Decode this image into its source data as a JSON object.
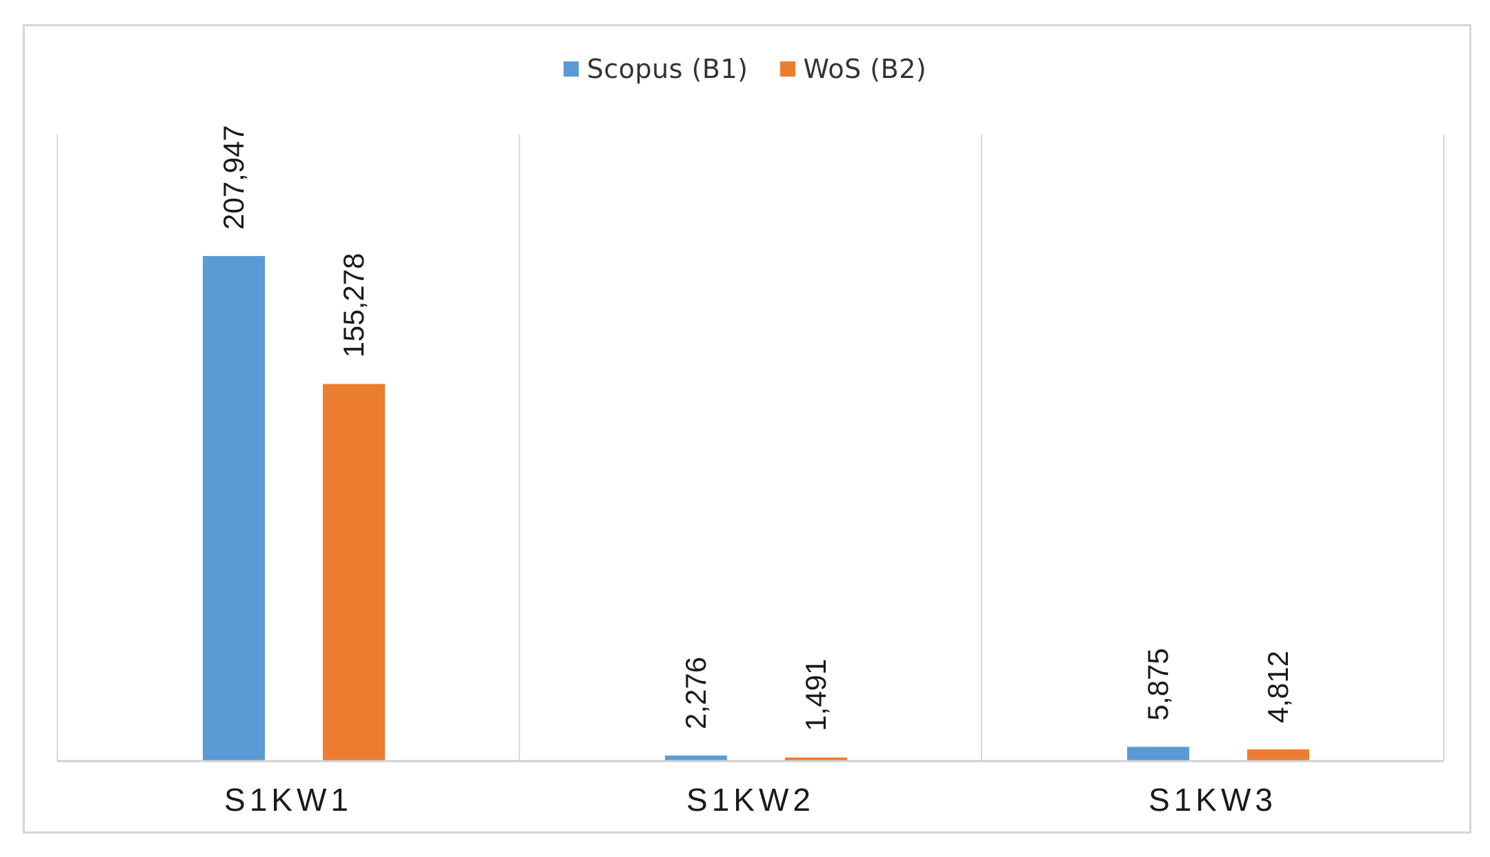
{
  "chart_data": {
    "type": "bar",
    "title": "",
    "xlabel": "",
    "ylabel": "",
    "categories": [
      "S1KW1",
      "S1KW2",
      "S1KW3"
    ],
    "series": [
      {
        "name": "Scopus (B1)",
        "color": "#5b9bd5",
        "values": [
          207947,
          2276,
          5875
        ],
        "labels": [
          "207,947",
          "2,276",
          "5,875"
        ]
      },
      {
        "name": "WoS (B2)",
        "color": "#ed7d31",
        "values": [
          155278,
          1491,
          4812
        ],
        "labels": [
          "155,278",
          "1,491",
          "4,812"
        ]
      }
    ],
    "ylim": [
      0,
      250000
    ],
    "legend_position": "top-center",
    "grid": "vertical-category-separators"
  }
}
